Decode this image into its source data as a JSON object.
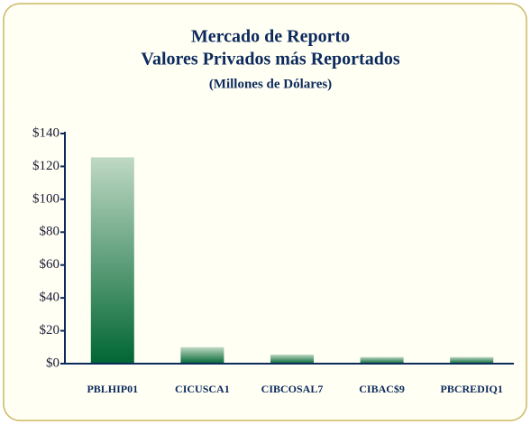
{
  "chart_data": {
    "type": "bar",
    "title": [
      "Mercado de Reporto",
      "Valores Privados más Reportados"
    ],
    "subtitle": "(Millones de Dólares)",
    "categories": [
      "PBLHIP01",
      "CICUSCA1",
      "CIBCOSAL7",
      "CIBAC$9",
      "PBCREDIQ1"
    ],
    "values": [
      125.5,
      10,
      5.5,
      4,
      4
    ],
    "color": "#006633",
    "ylim": [
      0,
      140
    ],
    "yticks": [
      {
        "value": 0,
        "label": "$0"
      },
      {
        "value": 20,
        "label": "$20"
      },
      {
        "value": 40,
        "label": "$40"
      },
      {
        "value": 60,
        "label": "$60"
      },
      {
        "value": 80,
        "label": "$80"
      },
      {
        "value": 100,
        "label": "$100"
      },
      {
        "value": 120,
        "label": "$120"
      },
      {
        "value": 140,
        "label": "$140"
      }
    ],
    "grid": false
  }
}
